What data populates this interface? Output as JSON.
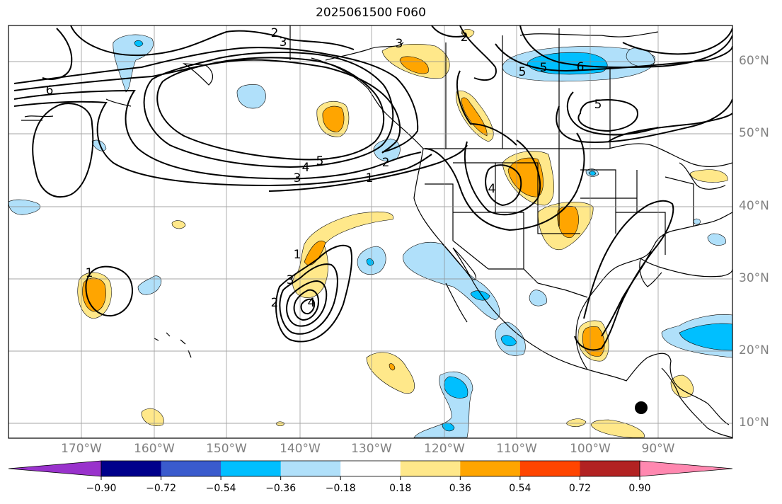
{
  "title": "2025061500 F060",
  "map": {
    "projection": "lat-lon",
    "lon_range": [
      -180,
      -80
    ],
    "lat_range": [
      8,
      65
    ],
    "gridlines": true,
    "lon_labels": [
      "170°W",
      "160°W",
      "150°W",
      "140°W",
      "130°W",
      "120°W",
      "110°W",
      "100°W",
      "90°W"
    ],
    "lat_labels": [
      "60°N",
      "50°N",
      "40°N",
      "30°N",
      "20°N",
      "10°N"
    ],
    "marker": "black-dot"
  },
  "contours": {
    "color": "#000000",
    "labels": [
      {
        "text": "2"
      },
      {
        "text": "3"
      },
      {
        "text": "2"
      },
      {
        "text": "1"
      },
      {
        "text": "3"
      },
      {
        "text": "4"
      },
      {
        "text": "5"
      },
      {
        "text": "6"
      },
      {
        "text": "6"
      },
      {
        "text": "5"
      },
      {
        "text": "5"
      },
      {
        "text": "4"
      },
      {
        "text": "5"
      },
      {
        "text": "3"
      },
      {
        "text": "2"
      },
      {
        "text": "1"
      },
      {
        "text": "1"
      },
      {
        "text": "3"
      },
      {
        "text": "2"
      },
      {
        "text": "4"
      }
    ]
  },
  "colorbar": {
    "colors": [
      "#9932cc",
      "#00008b",
      "#3a5bcd",
      "#00bfff",
      "#b0e0fa",
      "#ffffff",
      "#ffe88a",
      "#ffa500",
      "#ff4500",
      "#b22222",
      "#ff88b0"
    ],
    "ticks": [
      "−0.90",
      "−0.72",
      "−0.54",
      "−0.36",
      "−0.18",
      "0.18",
      "0.36",
      "0.54",
      "0.72",
      "0.90"
    ]
  }
}
